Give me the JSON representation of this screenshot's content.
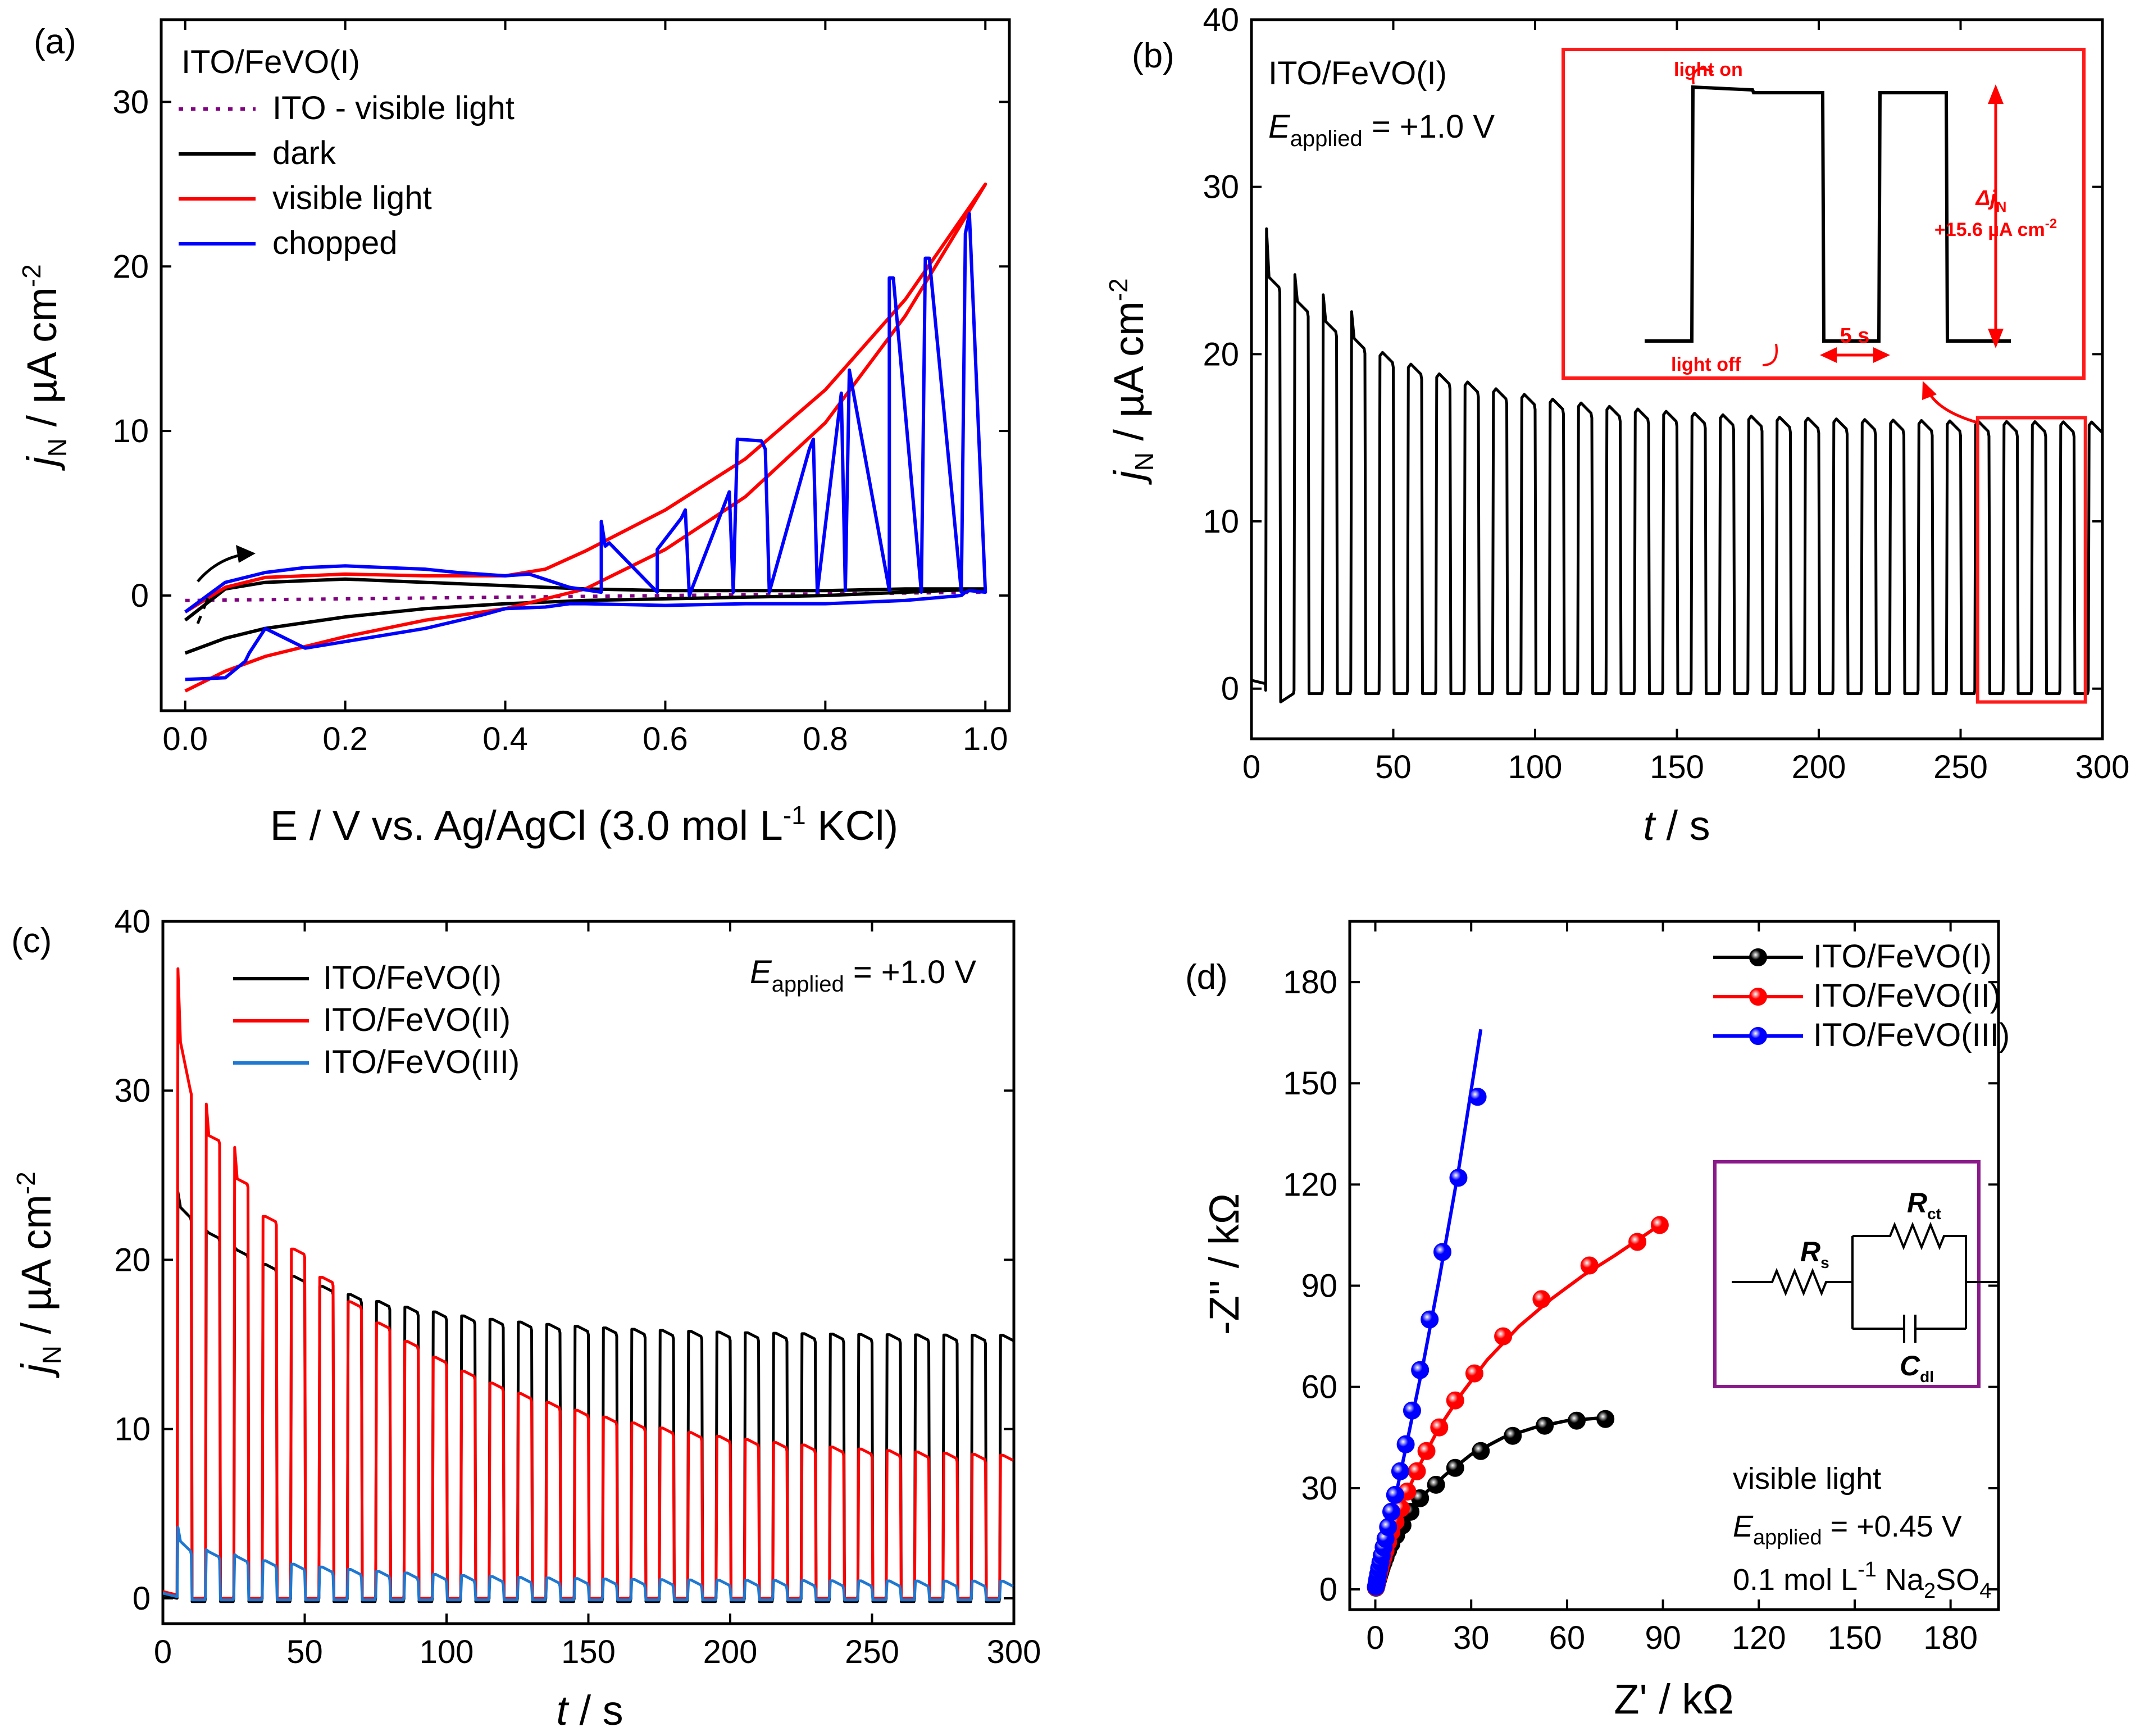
{
  "chart_data": [
    {
      "id": "a",
      "type": "line",
      "panel_label": "(a)",
      "title": "ITO/FeVO(I)",
      "xlabel": "E / V vs. Ag/AgCl (3.0 mol L-1 KCl)",
      "xlabel_parts": {
        "pre": "E / V vs. Ag/AgCl (3.0 mol L",
        "sup": "-1",
        "post": " KCl)"
      },
      "ylabel": "jN / µA cm-2",
      "ylabel_parts": {
        "j": "j",
        "sub": "N",
        "mid": " / µA cm",
        "sup": "-2"
      },
      "xlim": [
        -0.03,
        1.03
      ],
      "ylim": [
        -7,
        35
      ],
      "xticks": [
        0.0,
        0.2,
        0.4,
        0.6,
        0.8,
        1.0
      ],
      "xtick_labels": [
        "0.0",
        "0.2",
        "0.4",
        "0.6",
        "0.8",
        "1.0"
      ],
      "yticks": [
        0,
        10,
        20,
        30
      ],
      "ytick_labels": [
        "0",
        "10",
        "20",
        "30"
      ],
      "legend": [
        {
          "label": "ITO - visible light",
          "color": "#800080",
          "style": "dotted"
        },
        {
          "label": "dark",
          "color": "#000000",
          "style": "solid"
        },
        {
          "label": "visible light",
          "color": "#ff0000",
          "style": "solid"
        },
        {
          "label": "chopped",
          "color": "#0000ff",
          "style": "solid"
        }
      ],
      "series": [
        {
          "name": "ITO - visible light",
          "color": "#800080",
          "x": [
            0,
            0.2,
            0.4,
            0.6,
            0.8,
            1.0
          ],
          "y": [
            -0.3,
            -0.2,
            -0.1,
            0.0,
            0.1,
            0.2
          ]
        },
        {
          "name": "dark",
          "color": "#000000",
          "x": [
            0,
            0.05,
            0.1,
            0.2,
            0.3,
            0.4,
            0.5,
            0.6,
            0.7,
            0.8,
            0.9,
            1.0,
            0.9,
            0.8,
            0.7,
            0.6,
            0.5,
            0.4,
            0.3,
            0.2,
            0.1,
            0.05,
            0.0
          ],
          "y": [
            -1.5,
            0.4,
            0.8,
            1.0,
            0.8,
            0.6,
            0.4,
            0.3,
            0.3,
            0.3,
            0.4,
            0.4,
            0.2,
            0.0,
            -0.1,
            -0.2,
            -0.3,
            -0.5,
            -0.8,
            -1.3,
            -2.0,
            -2.6,
            -3.5
          ]
        },
        {
          "name": "visible light",
          "color": "#ff0000",
          "x": [
            0,
            0.05,
            0.1,
            0.2,
            0.3,
            0.4,
            0.45,
            0.5,
            0.6,
            0.7,
            0.8,
            0.9,
            1.0,
            0.9,
            0.8,
            0.7,
            0.6,
            0.5,
            0.4,
            0.3,
            0.2,
            0.1,
            0.05,
            0.0
          ],
          "y": [
            -1.0,
            0.5,
            1.1,
            1.3,
            1.2,
            1.2,
            1.6,
            2.7,
            5.2,
            8.3,
            12.5,
            18.0,
            25.0,
            17.0,
            10.5,
            6.0,
            2.8,
            0.4,
            -0.8,
            -1.5,
            -2.5,
            -3.7,
            -4.6,
            -5.8
          ]
        },
        {
          "name": "chopped",
          "color": "#0000ff",
          "x": [
            0,
            0.05,
            0.1,
            0.15,
            0.2,
            0.3,
            0.34,
            0.4,
            0.43,
            0.48,
            0.52,
            0.52,
            0.525,
            0.53,
            0.59,
            0.59,
            0.62,
            0.625,
            0.63,
            0.68,
            0.685,
            0.69,
            0.72,
            0.725,
            0.73,
            0.78,
            0.785,
            0.79,
            0.82,
            0.825,
            0.83,
            0.88,
            0.88,
            0.885,
            0.92,
            0.925,
            0.93,
            0.97,
            0.975,
            0.98,
            1.0,
            0.98,
            0.975,
            0.97,
            0.9,
            0.8,
            0.7,
            0.6,
            0.5,
            0.48,
            0.45,
            0.4,
            0.37,
            0.3,
            0.2,
            0.15,
            0.1,
            0.08,
            0.075,
            0.05,
            0.0
          ],
          "y": [
            -1.0,
            0.8,
            1.4,
            1.7,
            1.8,
            1.6,
            1.4,
            1.2,
            1.3,
            0.5,
            0.2,
            4.5,
            3.0,
            3.2,
            0.2,
            2.8,
            4.7,
            5.2,
            0.0,
            6.3,
            0.2,
            9.5,
            9.4,
            8.9,
            0.2,
            8.9,
            9.5,
            0.2,
            12.3,
            0.3,
            13.7,
            0.3,
            19.3,
            19.3,
            0.2,
            20.5,
            20.5,
            0.2,
            22.0,
            23.2,
            0.2,
            0.3,
            0.2,
            0.0,
            -0.3,
            -0.5,
            -0.5,
            -0.6,
            -0.5,
            -0.5,
            -0.7,
            -0.8,
            -1.2,
            -2.0,
            -2.8,
            -3.2,
            -2.0,
            -3.5,
            -4.0,
            -5.0,
            -5.1
          ]
        }
      ]
    },
    {
      "id": "b",
      "type": "line",
      "panel_label": "(b)",
      "title": "ITO/FeVO(I)",
      "eapplied": {
        "e": "E",
        "sub": "applied",
        "val": " = +1.0 V"
      },
      "xlabel": "t / s",
      "ylabel": "jN / µA cm-2",
      "ylabel_parts": {
        "j": "j",
        "sub": "N",
        "mid": " / µA cm",
        "sup": "-2"
      },
      "xlim": [
        0,
        300
      ],
      "ylim": [
        -3,
        40
      ],
      "xticks": [
        0,
        50,
        100,
        150,
        200,
        250,
        300
      ],
      "xtick_labels": [
        "0",
        "50",
        "100",
        "150",
        "200",
        "250",
        "300"
      ],
      "yticks": [
        0,
        10,
        20,
        30,
        40
      ],
      "ytick_labels": [
        "0",
        "10",
        "20",
        "30",
        "40"
      ],
      "chop_period_s": 10,
      "on_start_s": 5,
      "peak_first": 27.5,
      "light_on_start": 24,
      "light_on_end": 15.3,
      "dark_level": -0.3,
      "highlight_xrange": [
        256,
        294
      ],
      "inset": {
        "light_on": "light on",
        "light_off": "light off",
        "period": "5 s",
        "delta_j": "Δj",
        "delta_sub": "N",
        "delta_value": "+15.6 µA cm-2",
        "delta_value_parts": {
          "pre": "+15.6 µA cm",
          "sup": "-2"
        }
      },
      "series": [
        {
          "name": "ITO/FeVO(I)",
          "color": "#000000"
        }
      ]
    },
    {
      "id": "c",
      "type": "line",
      "panel_label": "(c)",
      "eapplied": {
        "e": "E",
        "sub": "applied",
        "val": " = +1.0 V"
      },
      "xlabel": "t / s",
      "ylabel": "jN / µA cm-2",
      "ylabel_parts": {
        "j": "j",
        "sub": "N",
        "mid": " / µA cm",
        "sup": "-2"
      },
      "xlim": [
        0,
        300
      ],
      "ylim": [
        -1.5,
        40
      ],
      "xticks": [
        0,
        50,
        100,
        150,
        200,
        250,
        300
      ],
      "xtick_labels": [
        "0",
        "50",
        "100",
        "150",
        "200",
        "250",
        "300"
      ],
      "yticks": [
        0,
        10,
        20,
        30,
        40
      ],
      "ytick_labels": [
        "0",
        "10",
        "20",
        "30",
        "40"
      ],
      "legend": [
        {
          "label": "ITO/FeVO(I)",
          "color": "#000000"
        },
        {
          "label": "ITO/FeVO(II)",
          "color": "#ff0000"
        },
        {
          "label": "ITO/FeVO(III)",
          "color": "#1e78d2"
        }
      ],
      "series": [
        {
          "name": "ITO/FeVO(I)",
          "color": "#000000",
          "peak_first": 24,
          "on_start": 22.5,
          "on_end": 15.2,
          "dark": -0.2
        },
        {
          "name": "ITO/FeVO(II)",
          "color": "#ff0000",
          "peak_first": 37.2,
          "on_start": 30,
          "on_end": 7.8,
          "dark": 0.0
        },
        {
          "name": "ITO/FeVO(III)",
          "color": "#1e78d2",
          "peak_first": 4.2,
          "on_start": 2.8,
          "on_end": 0.7,
          "dark": -0.1
        }
      ]
    },
    {
      "id": "d",
      "type": "scatter",
      "panel_label": "(d)",
      "xlabel": "Z' / kΩ",
      "ylabel": "-Z'' / kΩ",
      "xlim": [
        -8,
        195
      ],
      "ylim": [
        -6,
        198
      ],
      "xticks": [
        0,
        30,
        60,
        90,
        120,
        150,
        180
      ],
      "xtick_labels": [
        "0",
        "30",
        "60",
        "90",
        "120",
        "150",
        "180"
      ],
      "yticks": [
        0,
        30,
        60,
        90,
        120,
        150,
        180
      ],
      "ytick_labels": [
        "0",
        "30",
        "60",
        "90",
        "120",
        "150",
        "180"
      ],
      "circuit": {
        "rs": "R",
        "rs_sub": "s",
        "rct": "R",
        "rct_sub": "ct",
        "cdl": "C",
        "cdl_sub": "dl"
      },
      "conditions": {
        "line1": "visible light",
        "e": "E",
        "e_sub": "applied",
        "e_val": " = +0.45 V",
        "conc_pre": "0.1 mol L",
        "conc_sup": "-1",
        "conc_mid": " Na",
        "conc_sub": "2",
        "conc_post": "SO",
        "conc_sub2": "4"
      },
      "series": [
        {
          "name": "ITO/FeVO(I)",
          "color": "#000000",
          "x": [
            0.2,
            0.4,
            0.6,
            0.9,
            1.2,
            1.6,
            2.0,
            2.6,
            3.2,
            4.0,
            5.0,
            6.5,
            8.5,
            11,
            14,
            19,
            25,
            33,
            43,
            53,
            63,
            72
          ],
          "y": [
            0.5,
            1.2,
            2.0,
            3.0,
            4.0,
            5.2,
            6.5,
            8.0,
            9.5,
            11.5,
            13.5,
            16,
            19,
            23,
            27,
            31,
            36,
            41,
            45.5,
            48.5,
            50,
            50.5
          ]
        },
        {
          "name": "ITO/FeVO(II)",
          "color": "#ff0000",
          "x": [
            0.2,
            0.4,
            0.6,
            0.9,
            1.2,
            1.6,
            2.0,
            2.6,
            3.2,
            4.0,
            5.0,
            6.3,
            8,
            10,
            13,
            16,
            20,
            25,
            31,
            40,
            52,
            67,
            82,
            89
          ],
          "y": [
            0.6,
            1.4,
            2.3,
            3.5,
            4.8,
            6.2,
            7.8,
            9.6,
            11.5,
            14,
            17,
            20,
            24,
            29,
            35,
            41,
            48,
            56,
            64,
            75,
            86,
            96,
            103,
            108
          ]
        },
        {
          "name": "ITO/FeVO(III)",
          "color": "#0000ff",
          "x": [
            0.2,
            0.4,
            0.6,
            0.9,
            1.2,
            1.6,
            2.0,
            2.6,
            3.2,
            4.0,
            5.0,
            6.2,
            7.8,
            9.5,
            11.5,
            14,
            17,
            21,
            26,
            32
          ],
          "y": [
            0.8,
            1.8,
            3.0,
            4.5,
            6.2,
            8.0,
            10,
            12.5,
            15,
            18.5,
            23,
            28,
            35,
            43,
            53,
            65,
            80,
            100,
            122,
            146
          ]
        }
      ],
      "fit_curves": [
        {
          "name": "ITO/FeVO(I)",
          "color": "#000000",
          "x": [
            0,
            1,
            3,
            6,
            10,
            15,
            22,
            30,
            40,
            50,
            60,
            73
          ],
          "y": [
            0,
            3,
            8.5,
            15,
            22,
            28,
            34,
            40,
            45,
            48,
            50,
            51
          ]
        },
        {
          "name": "ITO/FeVO(II)",
          "color": "#ff0000",
          "x": [
            0,
            1,
            3,
            6,
            10,
            15,
            20,
            27,
            35,
            45,
            55,
            65,
            75,
            89
          ],
          "y": [
            0,
            3.5,
            10,
            19,
            29,
            39,
            48,
            58,
            68,
            78,
            86,
            93,
            99,
            108
          ]
        },
        {
          "name": "ITO/FeVO(III)",
          "color": "#0000ff",
          "x": [
            0,
            1,
            3,
            6,
            10,
            15,
            20,
            26,
            33
          ],
          "y": [
            0,
            4.5,
            12.5,
            26,
            44,
            67,
            92,
            124,
            166
          ]
        }
      ]
    }
  ]
}
